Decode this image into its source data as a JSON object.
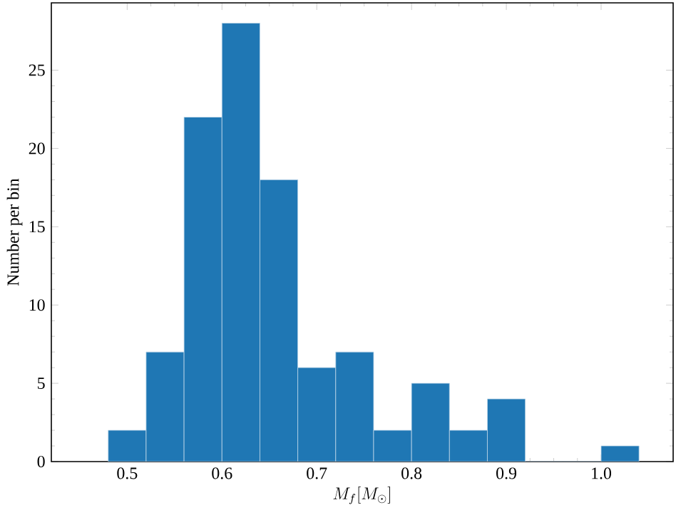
{
  "chart_data": {
    "type": "histogram",
    "xlabel": "M_f [M_\\odot]",
    "ylabel": "Number per bin",
    "bins": [
      0.48,
      0.52,
      0.56,
      0.6,
      0.64,
      0.68,
      0.72,
      0.76,
      0.8,
      0.84,
      0.88,
      0.92,
      0.96,
      1.0,
      1.04
    ],
    "values": [
      2,
      7,
      22,
      28,
      18,
      6,
      7,
      2,
      5,
      2,
      4,
      0,
      0,
      1
    ],
    "color": "#1f77b4",
    "xlim": [
      0.42,
      1.076
    ],
    "ylim": [
      0,
      29.3
    ],
    "xticks": [
      0.5,
      0.6,
      0.7,
      0.8,
      0.9,
      {
        "value": 1.0,
        "label": "1.0"
      }
    ],
    "yticks": [
      0,
      5,
      10,
      15,
      20,
      25
    ]
  }
}
